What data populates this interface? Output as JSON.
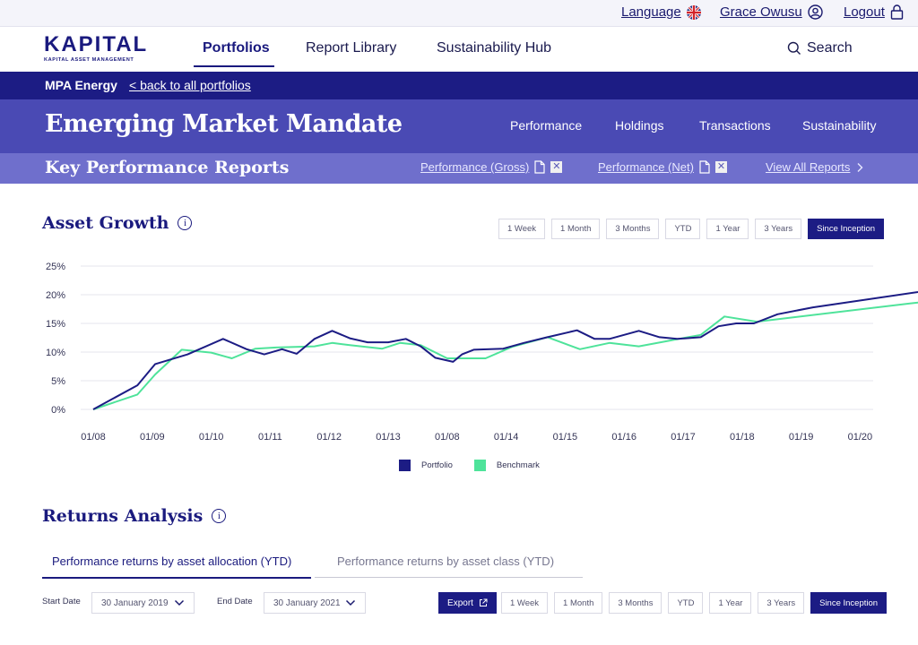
{
  "utility": {
    "language_label": "Language",
    "user_name": "Grace Owusu",
    "logout_label": "Logout"
  },
  "brand": {
    "name": "KAPITAL",
    "tagline": "KAPITAL ASSET MANAGEMENT"
  },
  "nav": {
    "items": [
      "Portfolios",
      "Report Library",
      "Sustainability Hub"
    ],
    "active": "Portfolios",
    "search_label": "Search"
  },
  "breadcrumb": {
    "current": "MPA Energy",
    "back_link": "< back to all portfolios"
  },
  "mandate": {
    "title": "Emerging Market Mandate",
    "tabs": [
      "Performance",
      "Holdings",
      "Transactions",
      "Sustainability"
    ]
  },
  "key_reports": {
    "title": "Key Performance Reports",
    "links": [
      "Performance (Gross)",
      "Performance (Net)"
    ],
    "view_all": "View All Reports"
  },
  "asset_growth": {
    "title": "Asset Growth",
    "ranges": [
      "1 Week",
      "1 Month",
      "3 Months",
      "YTD",
      "1 Year",
      "3 Years",
      "Since Inception"
    ],
    "active_range": "Since Inception"
  },
  "chart_data": {
    "type": "line",
    "x": [
      "01/08",
      "01/09",
      "01/10",
      "01/11",
      "01/12",
      "01/13",
      "01/08",
      "01/14",
      "01/15",
      "01/16",
      "01/17",
      "01/18",
      "01/19",
      "01/20"
    ],
    "yticks": [
      "0%",
      "5%",
      "10%",
      "15%",
      "20%",
      "25%"
    ],
    "ylim": [
      0,
      25
    ],
    "grid": true,
    "legend_position": "bottom",
    "series": [
      {
        "name": "Portfolio",
        "color": "#1c1c84",
        "points": [
          [
            0,
            0
          ],
          [
            0.75,
            4.2
          ],
          [
            1.05,
            7.9
          ],
          [
            1.6,
            9.6
          ],
          [
            2.2,
            12.3
          ],
          [
            2.6,
            10.5
          ],
          [
            2.9,
            9.6
          ],
          [
            3.2,
            10.5
          ],
          [
            3.45,
            9.7
          ],
          [
            3.75,
            12.3
          ],
          [
            4.05,
            13.7
          ],
          [
            4.35,
            12.4
          ],
          [
            4.65,
            11.7
          ],
          [
            5.0,
            11.7
          ],
          [
            5.3,
            12.3
          ],
          [
            5.55,
            11.0
          ],
          [
            5.8,
            9.0
          ],
          [
            6.1,
            8.3
          ],
          [
            6.25,
            9.6
          ],
          [
            6.45,
            10.4
          ],
          [
            6.95,
            10.6
          ],
          [
            7.3,
            11.6
          ],
          [
            7.7,
            12.6
          ],
          [
            8.2,
            13.8
          ],
          [
            8.5,
            12.3
          ],
          [
            8.75,
            12.3
          ],
          [
            9.25,
            13.7
          ],
          [
            9.6,
            12.6
          ],
          [
            9.9,
            12.3
          ],
          [
            10.3,
            12.6
          ],
          [
            10.6,
            14.5
          ],
          [
            10.9,
            15.0
          ],
          [
            11.2,
            15.0
          ],
          [
            11.6,
            16.6
          ],
          [
            12.2,
            17.8
          ],
          [
            14.2,
            20.8
          ]
        ]
      },
      {
        "name": "Benchmark",
        "color": "#4ee39a",
        "points": [
          [
            0,
            0
          ],
          [
            0.75,
            2.6
          ],
          [
            1.05,
            6.1
          ],
          [
            1.5,
            10.4
          ],
          [
            2.0,
            9.9
          ],
          [
            2.35,
            8.9
          ],
          [
            2.75,
            10.6
          ],
          [
            3.1,
            10.8
          ],
          [
            3.75,
            11.0
          ],
          [
            4.05,
            11.6
          ],
          [
            4.35,
            11.2
          ],
          [
            4.9,
            10.6
          ],
          [
            5.2,
            11.6
          ],
          [
            5.55,
            11.2
          ],
          [
            6.0,
            8.9
          ],
          [
            6.65,
            8.9
          ],
          [
            7.1,
            10.9
          ],
          [
            7.7,
            12.6
          ],
          [
            8.25,
            10.5
          ],
          [
            8.75,
            11.6
          ],
          [
            9.25,
            11.0
          ],
          [
            10.3,
            13.0
          ],
          [
            10.7,
            16.2
          ],
          [
            11.25,
            15.3
          ],
          [
            14.2,
            18.9
          ]
        ]
      }
    ]
  },
  "returns": {
    "title": "Returns Analysis",
    "tabs": [
      "Performance returns by asset allocation (YTD)",
      "Performance returns by asset class (YTD)"
    ],
    "start_label": "Start Date",
    "start_value": "30 January 2019",
    "end_label": "End Date",
    "end_value": "30 January 2021",
    "export_label": "Export",
    "ranges": [
      "1 Week",
      "1 Month",
      "3 Months",
      "YTD",
      "1 Year",
      "3 Years",
      "Since Inception"
    ],
    "active_range": "Since Inception"
  }
}
